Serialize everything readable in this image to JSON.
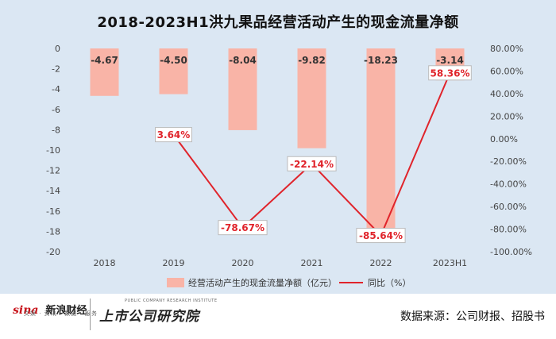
{
  "title": "2018-2023H1洪九果品经营活动产生的现金流量净额",
  "chart_data": {
    "type": "bar",
    "categories": [
      "2018",
      "2019",
      "2020",
      "2021",
      "2022",
      "2023H1"
    ],
    "series": [
      {
        "name": "经营活动产生的现金流量净额（亿元）",
        "type": "bar",
        "axis": "left",
        "values": [
          -4.67,
          -4.5,
          -8.04,
          -9.82,
          -18.23,
          -3.14
        ],
        "labels": [
          "-4.67",
          "-4.50",
          "-8.04",
          "-9.82",
          "-18.23",
          "-3.14"
        ],
        "color": "#f9b4a7"
      },
      {
        "name": "同比（%）",
        "type": "line",
        "axis": "right",
        "values": [
          null,
          3.64,
          -78.67,
          -22.14,
          -85.64,
          58.36
        ],
        "labels": [
          "",
          "3.64%",
          "-78.67%",
          "-22.14%",
          "-85.64%",
          "58.36%"
        ],
        "color": "#e0242b"
      }
    ],
    "y_left": {
      "min": -20,
      "max": 0,
      "step": 2,
      "ticks": [
        "0",
        "-2",
        "-4",
        "-6",
        "-8",
        "-10",
        "-12",
        "-14",
        "-16",
        "-18",
        "-20"
      ]
    },
    "y_right": {
      "min": -100,
      "max": 80,
      "step": 20,
      "ticks": [
        "80.00%",
        "60.00%",
        "40.00%",
        "20.00%",
        "0.00%",
        "-20.00%",
        "-40.00%",
        "-60.00%",
        "-80.00%",
        "-100.00%"
      ]
    },
    "grid": false,
    "legend_position": "bottom"
  },
  "footer": {
    "logo_main": "sina",
    "logo_cn": "新浪财经",
    "logo_sub": "文娱 · 资讯 · 数据 · 服务",
    "institute": "上市公司研究院",
    "institute_en": "PUBLIC COMPANY RESEARCH INSTITUTE",
    "source": "数据来源：公司财报、招股书"
  },
  "colors": {
    "background": "#dbe7f3",
    "bar": "#f9b4a7",
    "line": "#e0242b"
  }
}
